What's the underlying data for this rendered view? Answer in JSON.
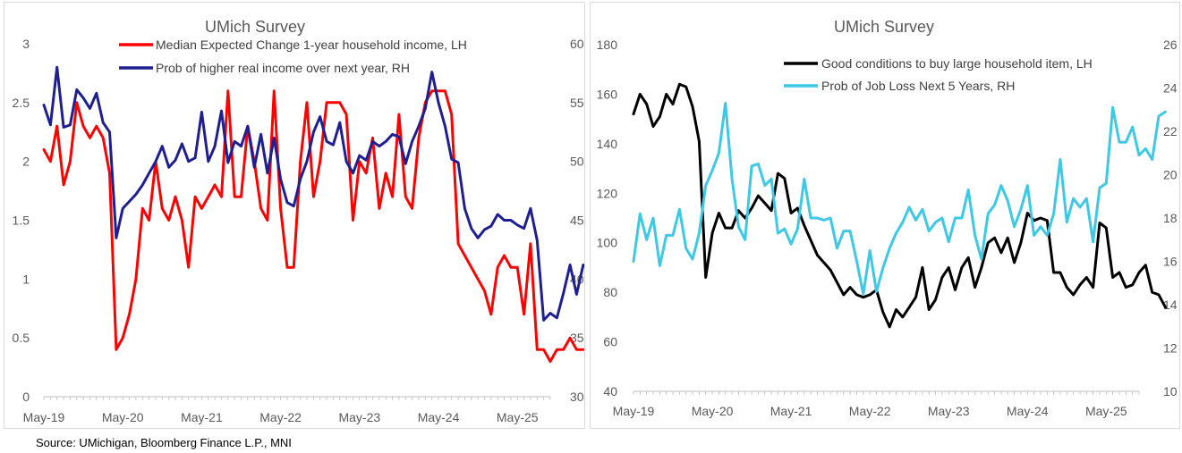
{
  "source_note": "Source: UMichigan, Bloomberg Finance L.P., MNI",
  "chart_data": [
    {
      "type": "line",
      "title": "UMich Survey",
      "x_tick_labels": [
        "May-19",
        "May-20",
        "May-21",
        "May-22",
        "May-23",
        "May-24",
        "May-25"
      ],
      "left_axis": {
        "range": [
          0,
          3
        ],
        "ticks": [
          "0",
          "0.5",
          "1",
          "1.5",
          "2",
          "2.5",
          "3"
        ]
      },
      "right_axis": {
        "range": [
          30,
          60
        ],
        "ticks": [
          "30",
          "35",
          "40",
          "45",
          "50",
          "55",
          "60"
        ]
      },
      "x_range": [
        "2019-05",
        "2025-10"
      ],
      "series": [
        {
          "name": "Median Expected Change 1-year household income, LH",
          "axis": "left",
          "color": "#ff0000",
          "start": "2019-05",
          "values": [
            2.1,
            2.0,
            2.3,
            1.8,
            2.0,
            2.5,
            2.3,
            2.2,
            2.3,
            2.2,
            1.9,
            0.4,
            0.5,
            0.7,
            1.0,
            1.6,
            1.5,
            2.0,
            1.6,
            1.5,
            1.7,
            1.5,
            1.1,
            1.7,
            1.6,
            1.7,
            1.8,
            1.7,
            2.6,
            1.7,
            1.7,
            2.3,
            2.0,
            1.6,
            1.5,
            2.6,
            1.6,
            1.1,
            1.1,
            2.0,
            2.5,
            1.7,
            2.0,
            2.5,
            2.5,
            2.5,
            2.4,
            1.5,
            2.0,
            1.9,
            2.2,
            1.6,
            1.9,
            1.7,
            2.4,
            1.7,
            1.6,
            2.2,
            2.5,
            2.6,
            2.6,
            2.6,
            2.4,
            1.3,
            1.2,
            1.1,
            1.0,
            0.9,
            0.7,
            1.1,
            1.2,
            1.1,
            1.1,
            0.7,
            1.3,
            0.4,
            0.4,
            0.3,
            0.4,
            0.4,
            0.5,
            0.4,
            0.4
          ]
        },
        {
          "name": "Prob of higher real income over next year, RH",
          "axis": "right",
          "color": "#1f1f8f",
          "start": "2019-05",
          "values": [
            54.8,
            53.1,
            58.0,
            52.9,
            53.1,
            56.1,
            55.4,
            54.5,
            55.8,
            53.3,
            52.5,
            43.5,
            46.0,
            46.6,
            47.2,
            48.0,
            49.0,
            50.0,
            51.3,
            49.5,
            50.1,
            51.5,
            50.0,
            50.3,
            54.2,
            50.0,
            51.3,
            54.3,
            49.9,
            51.7,
            51.3,
            53.0,
            49.5,
            52.3,
            49.0,
            52.0,
            48.5,
            46.5,
            46.2,
            48.5,
            50.0,
            52.5,
            53.8,
            51.7,
            51.4,
            53.3,
            50.0,
            49.0,
            50.5,
            50.1,
            51.7,
            51.3,
            51.7,
            52.3,
            52.1,
            49.8,
            51.7,
            53.0,
            54.5,
            57.6,
            55.0,
            53.0,
            50.2,
            49.9,
            46.0,
            44.3,
            43.5,
            44.2,
            44.5,
            45.5,
            45.0,
            45.0,
            44.6,
            44.3,
            46.0,
            43.3,
            36.5,
            37.1,
            36.7,
            38.8,
            41.2,
            38.7,
            41.2,
            40.7
          ]
        }
      ]
    },
    {
      "type": "line",
      "title": "UMich Survey",
      "x_tick_labels": [
        "May-19",
        "May-20",
        "May-21",
        "May-22",
        "May-23",
        "May-24",
        "May-25"
      ],
      "left_axis": {
        "range": [
          40,
          180
        ],
        "ticks": [
          "40",
          "60",
          "80",
          "100",
          "120",
          "140",
          "160",
          "180"
        ]
      },
      "right_axis": {
        "range": [
          10,
          26
        ],
        "ticks": [
          "10",
          "12",
          "14",
          "16",
          "18",
          "20",
          "22",
          "24",
          "26"
        ]
      },
      "x_range": [
        "2019-05",
        "2025-10"
      ],
      "series": [
        {
          "name": "Good conditions to buy large household item, LH",
          "axis": "left",
          "color": "#000000",
          "start": "2019-05",
          "values": [
            152,
            160,
            156,
            147,
            151,
            160,
            156,
            164,
            163,
            155,
            141,
            86,
            104,
            112,
            106,
            106,
            113,
            110,
            114,
            119,
            116,
            113,
            128,
            126,
            112,
            114,
            107,
            101,
            95,
            92,
            89,
            84,
            79,
            82,
            79,
            78,
            79,
            81,
            72,
            66,
            73,
            70,
            74,
            78,
            90,
            73,
            77,
            86,
            90,
            81,
            90,
            94,
            82,
            90,
            100,
            102,
            96,
            102,
            92,
            100,
            112,
            109,
            110,
            109,
            88,
            88,
            82,
            79,
            83,
            86,
            82,
            108,
            106,
            86,
            88,
            82,
            83,
            88,
            91,
            80,
            79,
            74
          ]
        },
        {
          "name": "Prob of Job Loss Next 5 Years, RH",
          "axis": "right",
          "color": "#3fc8e4",
          "start": "2019-05",
          "values": [
            16.0,
            18.2,
            17.0,
            18.0,
            15.8,
            17.2,
            17.2,
            18.4,
            16.6,
            16.1,
            17.3,
            19.5,
            20.2,
            21.0,
            23.3,
            19.8,
            17.6,
            17.0,
            20.4,
            20.5,
            19.5,
            19.8,
            17.3,
            17.5,
            16.8,
            17.5,
            19.8,
            18.0,
            18.0,
            17.9,
            18.0,
            16.6,
            17.4,
            17.4,
            16.0,
            14.5,
            16.5,
            14.6,
            15.7,
            16.6,
            17.3,
            17.8,
            18.5,
            17.9,
            18.4,
            17.4,
            17.8,
            18.0,
            16.9,
            18.0,
            18.0,
            19.3,
            17.2,
            16.1,
            18.2,
            18.6,
            19.5,
            18.8,
            17.6,
            18.4,
            19.5,
            17.2,
            17.6,
            17.2,
            18.2,
            20.7,
            17.8,
            18.9,
            18.5,
            18.9,
            16.9,
            19.4,
            19.6,
            23.1,
            21.5,
            21.5,
            22.2,
            20.9,
            21.2,
            20.7,
            22.7,
            22.9
          ]
        }
      ]
    }
  ]
}
